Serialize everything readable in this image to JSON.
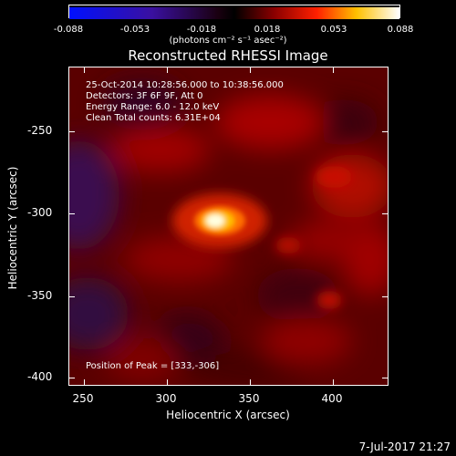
{
  "colorbar": {
    "ticks": [
      "-0.088",
      "-0.053",
      "-0.018",
      "0.018",
      "0.053",
      "0.088"
    ],
    "units": "(photons cm⁻² s⁻¹ asec⁻²)"
  },
  "title": "Reconstructed RHESSI Image",
  "info": {
    "time": "25-Oct-2014 10:28:56.000 to 10:38:56.000",
    "detectors": "Detectors: 3F 6F 9F, Att 0",
    "energy": "Energy Range: 6.0 - 12.0 keV",
    "clean": "Clean    Total counts: 6.31E+04"
  },
  "peak": "Position of Peak = [333,-306]",
  "axes": {
    "xlabel": "Heliocentric X (arcsec)",
    "ylabel": "Heliocentric Y (arcsec)",
    "xticks": [
      "250",
      "300",
      "350",
      "400"
    ],
    "yticks": [
      "-250",
      "-300",
      "-350",
      "-400"
    ],
    "xrange": [
      240,
      432
    ],
    "yrange": [
      -406,
      -215
    ]
  },
  "datestamp": "7-Jul-2017 21:27",
  "colors": {
    "cb_low": "#0010ff",
    "cb_mid": "#000000",
    "cb_high": "#ffffff",
    "peak_core": "#ffffe0",
    "background_red": "#5a0000"
  }
}
